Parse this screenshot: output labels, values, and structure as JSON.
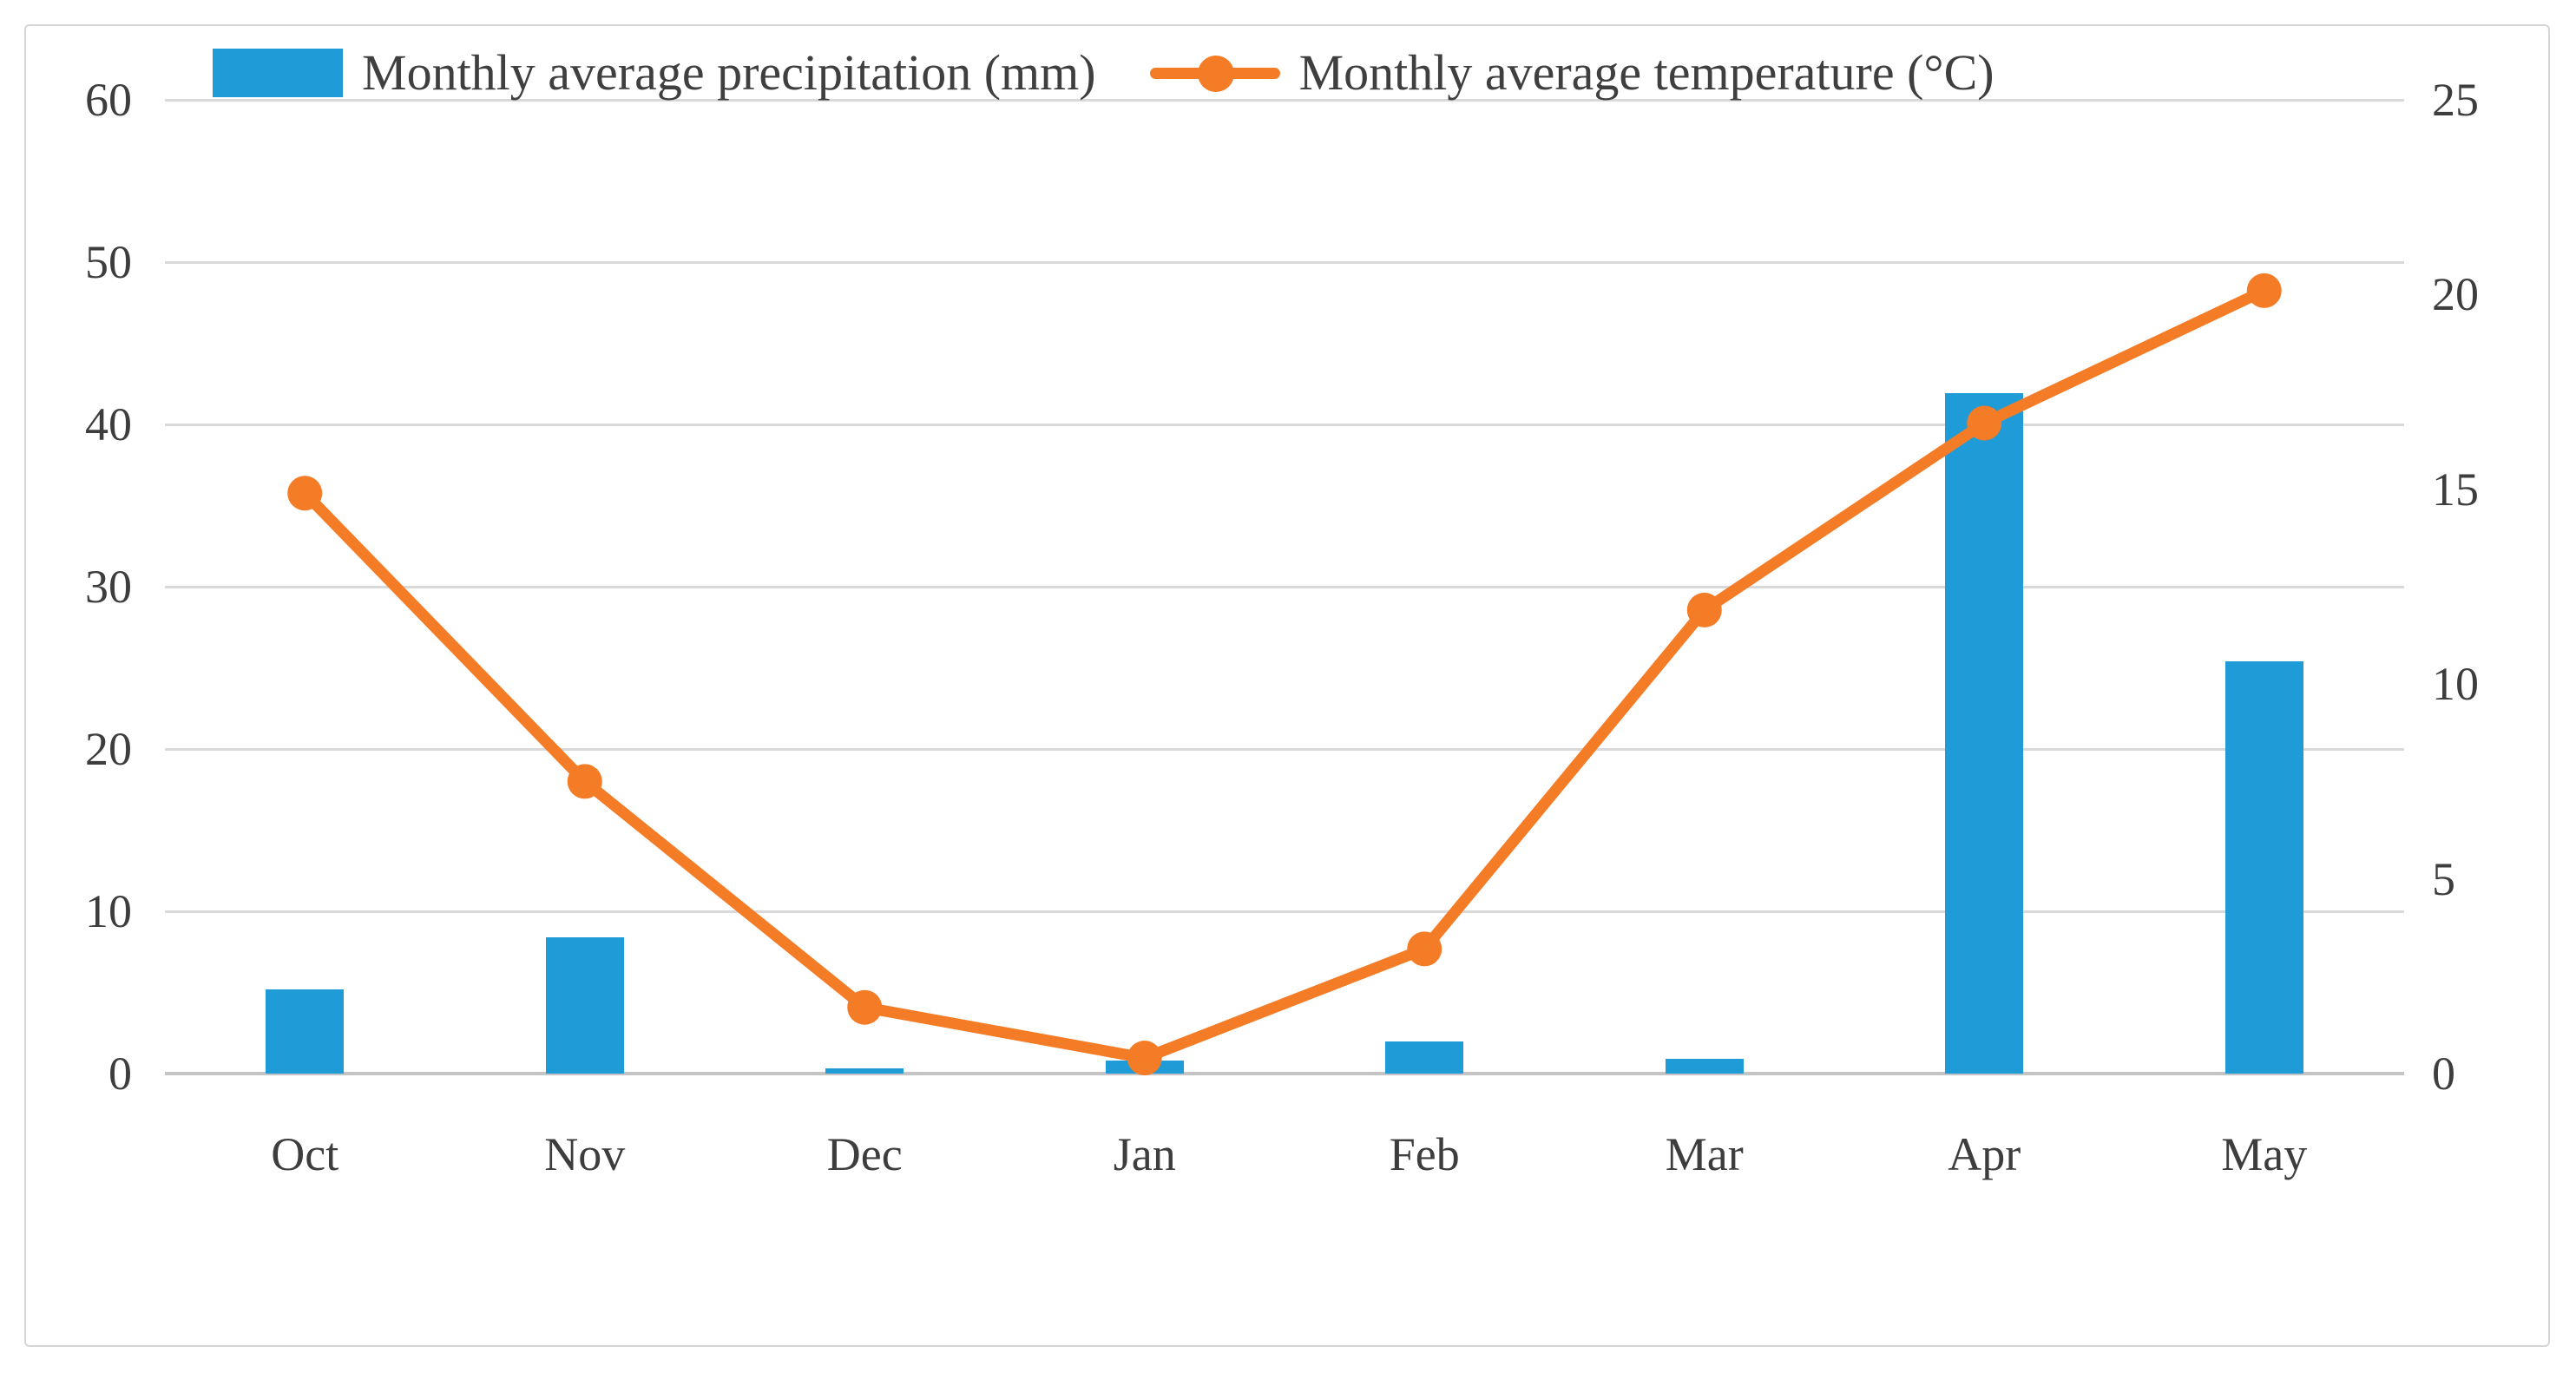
{
  "legend": {
    "precipitation_label": "Monthly average precipitation (mm)",
    "temperature_label": "Monthly average temperature (°C)"
  },
  "colors": {
    "bar_blue": "#1f9bd7",
    "line_orange": "#f57c26",
    "gridline": "#d9d9d9",
    "baseline": "#c4c4c4",
    "axis_text": "#3d3d3d"
  },
  "chart_data": {
    "type": "bar",
    "subtype": "combo bar + line, dual y-axes",
    "categories": [
      "Oct",
      "Nov",
      "Dec",
      "Jan",
      "Feb",
      "Mar",
      "Apr",
      "May"
    ],
    "series": [
      {
        "name": "Monthly average precipitation (mm)",
        "type": "bar",
        "axis": "left",
        "unit": "mm",
        "values": [
          5.2,
          8.4,
          0.3,
          0.8,
          2.0,
          0.9,
          41.9,
          25.4
        ]
      },
      {
        "name": "Monthly average temperature (°C)",
        "type": "line",
        "axis": "right",
        "unit": "°C",
        "values": [
          14.9,
          7.5,
          1.7,
          0.4,
          3.2,
          11.9,
          16.7,
          20.1
        ]
      }
    ],
    "left_axis": {
      "label": "",
      "min": 0,
      "max": 60,
      "step": 10,
      "ticks": [
        0,
        10,
        20,
        30,
        40,
        50,
        60
      ]
    },
    "right_axis": {
      "label": "",
      "min": 0,
      "max": 25,
      "step": 5,
      "ticks": [
        0,
        5,
        10,
        15,
        20,
        25
      ]
    },
    "grid": "horizontal gridlines on, vertical off",
    "legend_position": "top"
  }
}
